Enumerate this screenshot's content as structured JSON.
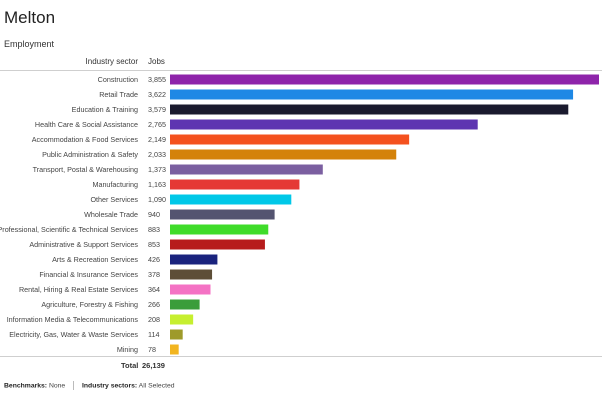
{
  "header": {
    "title": "Melton",
    "subtitle": "Employment"
  },
  "columns": {
    "sector": "Industry sector",
    "jobs": "Jobs"
  },
  "total": {
    "label": "Total",
    "value": "26,139"
  },
  "footer": {
    "benchmarks_label": "Benchmarks:",
    "benchmarks_value": "None",
    "sectors_label": "Industry sectors:",
    "sectors_value": "All Selected"
  },
  "chart_data": {
    "type": "bar",
    "orientation": "horizontal",
    "title": "Employment",
    "categories": [
      "Construction",
      "Retail Trade",
      "Education & Training",
      "Health Care & Social Assistance",
      "Accommodation & Food Services",
      "Public Administration & Safety",
      "Transport, Postal & Warehousing",
      "Manufacturing",
      "Other Services",
      "Wholesale Trade",
      "Professional, Scientific & Technical Services",
      "Administrative & Support Services",
      "Arts & Recreation Services",
      "Financial & Insurance Services",
      "Rental, Hiring & Real Estate Services",
      "Agriculture, Forestry & Fishing",
      "Information Media & Telecommunications",
      "Electricity, Gas, Water & Waste Services",
      "Mining"
    ],
    "values": [
      3855,
      3622,
      3579,
      2765,
      2149,
      2033,
      1373,
      1163,
      1090,
      940,
      883,
      853,
      426,
      378,
      364,
      266,
      208,
      114,
      78
    ],
    "value_labels": [
      "3,855",
      "3,622",
      "3,579",
      "2,765",
      "2,149",
      "2,033",
      "1,373",
      "1,163",
      "1,090",
      "940",
      "883",
      "853",
      "426",
      "378",
      "364",
      "266",
      "208",
      "114",
      "78"
    ],
    "colors": [
      "#8e24aa",
      "#1e88e5",
      "#1a1a2e",
      "#5e35b1",
      "#f4511e",
      "#d4820a",
      "#7b5fa0",
      "#e53935",
      "#00c8e8",
      "#545470",
      "#3fdc2a",
      "#b71c1c",
      "#1a237e",
      "#5d4e37",
      "#f472c4",
      "#3a9d3a",
      "#c6ef2f",
      "#9e9a2a",
      "#f2b520"
    ],
    "xlim": [
      0,
      3855
    ],
    "legend": "none",
    "grid": false
  }
}
